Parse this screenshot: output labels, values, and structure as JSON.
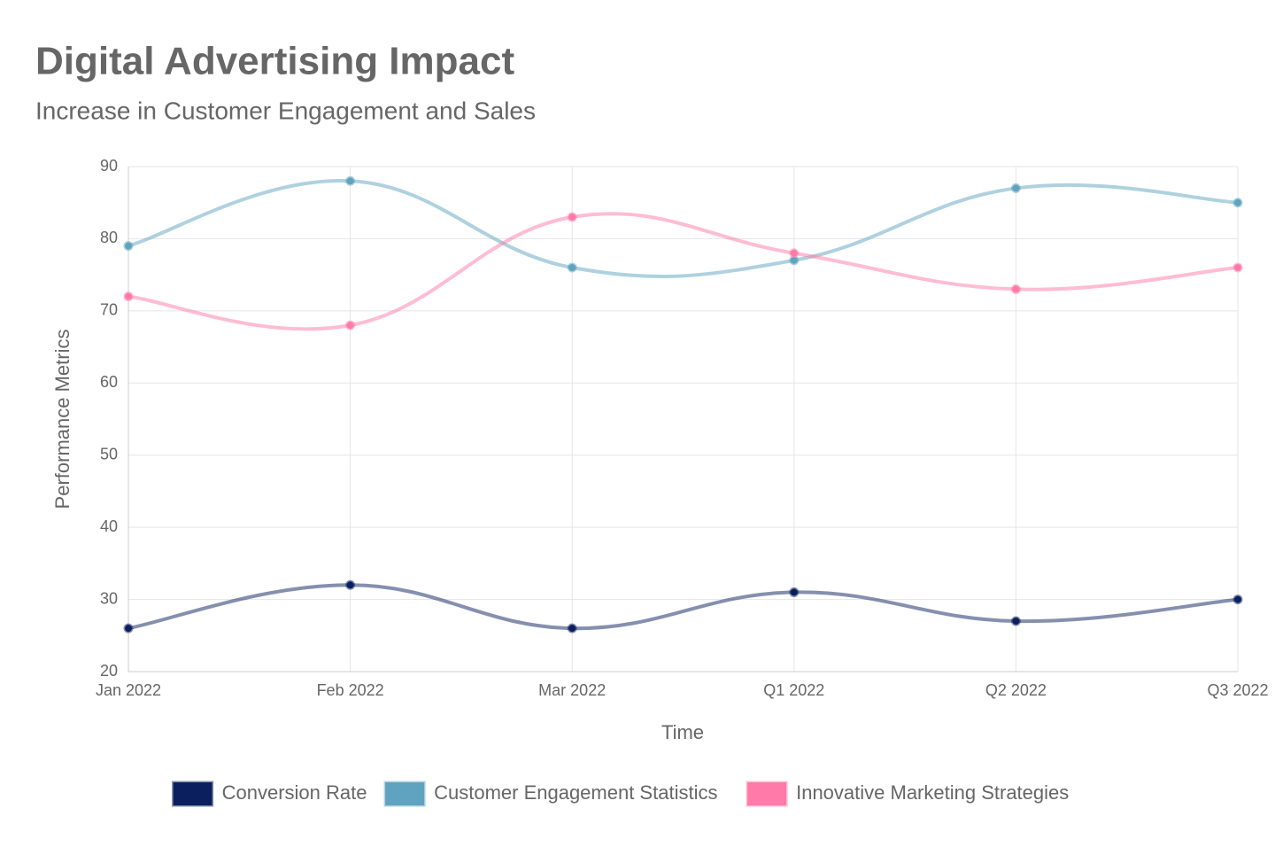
{
  "chart_data": {
    "type": "line",
    "title": "Digital Advertising Impact",
    "subtitle": "Increase in Customer Engagement and Sales",
    "x_label": "Time",
    "y_label": "Performance Metrics",
    "categories": [
      "Jan 2022",
      "Feb 2022",
      "Mar 2022",
      "Q1 2022",
      "Q2 2022",
      "Q3 2022"
    ],
    "series": [
      {
        "name": "Conversion Rate",
        "color": "#0b1f5e",
        "values": [
          26,
          32,
          26,
          31,
          27,
          30
        ]
      },
      {
        "name": "Customer Engagement Statistics",
        "color": "#5fa3c0",
        "values": [
          79,
          88,
          76,
          77,
          87,
          85
        ]
      },
      {
        "name": "Innovative Marketing Strategies",
        "color": "#ff7aa8",
        "values": [
          72,
          68,
          83,
          78,
          73,
          76
        ]
      }
    ],
    "ylim": [
      20,
      90
    ],
    "yticks": [
      20,
      30,
      40,
      50,
      60,
      70,
      80,
      90
    ],
    "grid": true,
    "legend": "bottom"
  }
}
